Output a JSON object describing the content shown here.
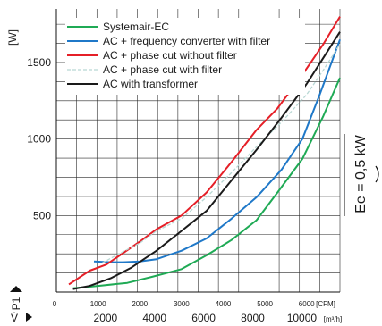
{
  "chart_data": {
    "type": "line",
    "ylabel": "[W]",
    "y_symbol": "P1",
    "x_symbol": "V̇",
    "ylim": [
      0,
      1850
    ],
    "yticks": [
      500,
      1000,
      1500
    ],
    "xlim_cfm": [
      0,
      6800
    ],
    "cfm_ticks": [
      0,
      1000,
      2000,
      3000,
      4000,
      5000,
      6000
    ],
    "cfm_unit": "[CFM]",
    "m3h_ticks": [
      2000,
      4000,
      6000,
      8000,
      10000
    ],
    "m3h_unit": "[m³/h]",
    "grid": true,
    "legend_position": "top-left",
    "side_label": "Ee = 0,5 kW",
    "series": [
      {
        "name": "Systemair-EC",
        "color": "#1faa55",
        "dashed": false,
        "x": [
          400,
          1000,
          1700,
          2300,
          3000,
          3600,
          4200,
          4800,
          5300,
          5900,
          6400,
          6800
        ],
        "y": [
          25,
          40,
          60,
          100,
          150,
          240,
          340,
          470,
          650,
          870,
          1150,
          1400
        ]
      },
      {
        "name": "AC + frequency converter with filter",
        "color": "#1f78c8",
        "dashed": false,
        "x": [
          900,
          1300,
          1600,
          2000,
          2400,
          3000,
          3600,
          4200,
          4800,
          5400,
          5900,
          6300,
          6800
        ],
        "y": [
          200,
          195,
          195,
          200,
          215,
          270,
          350,
          480,
          620,
          800,
          1000,
          1280,
          1650
        ]
      },
      {
        "name": "AC + phase cut without filter",
        "color": "#e51f27",
        "dashed": false,
        "x": [
          300,
          800,
          1200,
          2000,
          2400,
          3000,
          3600,
          4200,
          4800,
          5300,
          5900,
          6400,
          6800
        ],
        "y": [
          50,
          140,
          180,
          330,
          410,
          500,
          650,
          850,
          1060,
          1200,
          1420,
          1620,
          1800
        ]
      },
      {
        "name": "AC + phase cut with filter",
        "color": "#b8d8d4",
        "dashed": true,
        "x": [
          1100,
          1500,
          2000,
          2400,
          3000,
          3600,
          4200,
          4800,
          5400,
          6000,
          6400,
          6800
        ],
        "y": [
          190,
          250,
          320,
          400,
          480,
          620,
          780,
          950,
          1110,
          1290,
          1450,
          1620
        ]
      },
      {
        "name": "AC with transformer",
        "color": "#1a1a1a",
        "dashed": false,
        "x": [
          400,
          800,
          1300,
          1800,
          2400,
          3000,
          3600,
          4200,
          4800,
          5400,
          6000,
          6400,
          6800
        ],
        "y": [
          20,
          40,
          90,
          160,
          270,
          400,
          530,
          730,
          930,
          1140,
          1360,
          1530,
          1700
        ]
      }
    ]
  }
}
